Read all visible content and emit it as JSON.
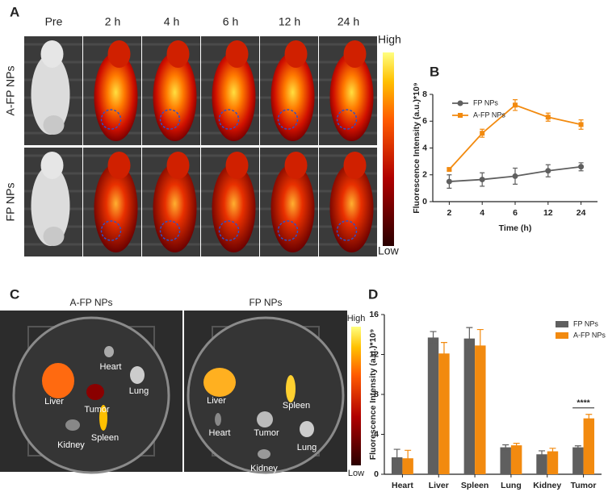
{
  "panels": {
    "a": {
      "label": "A",
      "columns": [
        "Pre",
        "2 h",
        "4 h",
        "6 h",
        "12 h",
        "24 h"
      ],
      "rows": [
        "A-FP NPs",
        "FP NPs"
      ],
      "scale_high": "High",
      "scale_low": "Low"
    },
    "c": {
      "label": "C",
      "dishes": [
        {
          "title": "A-FP NPs",
          "organs": [
            "Liver",
            "Heart",
            "Lung",
            "Tumor",
            "Kidney",
            "Spleen"
          ]
        },
        {
          "title": "FP NPs",
          "organs": [
            "Liver",
            "Spleen",
            "Heart",
            "Tumor",
            "Lung",
            "Kidney"
          ]
        }
      ],
      "scale_high": "High",
      "scale_low": "Low"
    }
  },
  "chart_data": [
    {
      "type": "line",
      "panel_label": "B",
      "ylabel": "Fluorescence Intensity (a.u.)*10⁹",
      "xlabel": "Time (h)",
      "categories": [
        "2",
        "4",
        "6",
        "12",
        "24"
      ],
      "ylim": [
        0,
        8
      ],
      "yticks": [
        0,
        2,
        4,
        6,
        8
      ],
      "series": [
        {
          "name": "FP NPs",
          "color": "#5f5f5f",
          "values": [
            1.5,
            1.65,
            1.9,
            2.3,
            2.6
          ],
          "errors": [
            0.5,
            0.5,
            0.6,
            0.45,
            0.3
          ]
        },
        {
          "name": "A-FP NPs",
          "color": "#f28a0f",
          "values": [
            2.4,
            5.1,
            7.2,
            6.3,
            5.75
          ],
          "errors": [
            0.1,
            0.3,
            0.4,
            0.3,
            0.35
          ]
        }
      ]
    },
    {
      "type": "bar",
      "panel_label": "D",
      "ylabel": "Fluorescence Intensity (a.u.)*10⁹",
      "categories": [
        "Heart",
        "Liver",
        "Spleen",
        "Lung",
        "Kidney",
        "Tumor"
      ],
      "ylim": [
        0,
        16
      ],
      "yticks": [
        0,
        4,
        8,
        12,
        16
      ],
      "annotation": "****",
      "series": [
        {
          "name": "FP NPs",
          "color": "#5f5f5f",
          "values": [
            1.7,
            13.7,
            13.6,
            2.7,
            2.0,
            2.7
          ],
          "errors": [
            0.8,
            0.6,
            1.1,
            0.25,
            0.35,
            0.15
          ]
        },
        {
          "name": "A-FP NPs",
          "color": "#f28a0f",
          "values": [
            1.6,
            12.1,
            12.9,
            2.9,
            2.3,
            5.6
          ],
          "errors": [
            0.8,
            1.1,
            1.6,
            0.2,
            0.3,
            0.4
          ]
        }
      ]
    }
  ]
}
